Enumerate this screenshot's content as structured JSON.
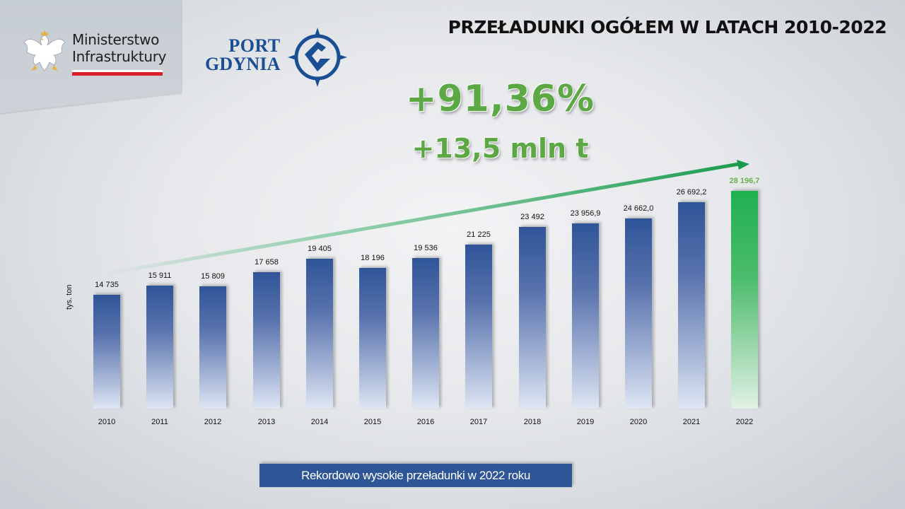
{
  "header": {
    "ministry": {
      "line1": "Ministerstwo",
      "line2": "Infrastruktury"
    },
    "port": {
      "line1": "PORT",
      "line2": "GDYNIA",
      "color": "#1a4f94"
    },
    "title": "PRZEŁADUNKI OGÓŁEM W LATACH 2010-2022"
  },
  "highlights": {
    "percent_growth": "+91,36%",
    "absolute_growth": "+13,5 mln t",
    "color": "#5ba845"
  },
  "footer_note": "Rekordowo wysokie przeładunki w 2022 roku",
  "chart_data": {
    "type": "bar",
    "title": "PRZEŁADUNKI OGÓŁEM W LATACH 2010-2022",
    "xlabel": "",
    "ylabel": "tys. ton",
    "categories": [
      "2010",
      "2011",
      "2012",
      "2013",
      "2014",
      "2015",
      "2016",
      "2017",
      "2018",
      "2019",
      "2020",
      "2021",
      "2022"
    ],
    "values": [
      14735,
      15911,
      15809,
      17658,
      19405,
      18196,
      19536,
      21225,
      23492,
      23956.9,
      24662.0,
      26692.2,
      28196.7
    ],
    "value_labels": [
      "14 735",
      "15 911",
      "15 809",
      "17 658",
      "19 405",
      "18 196",
      "19 536",
      "21 225",
      "23 492",
      "23 956,9",
      "24 662,0",
      "26 692,2",
      "28 196,7"
    ],
    "highlight_index": 12,
    "bar_color": "#2f5598",
    "highlight_color": "#1fb150",
    "grid": false,
    "legend": null,
    "annotations": [
      "+91,36%",
      "+13,5 mln t",
      "trend arrow 2010 → 2022"
    ]
  }
}
